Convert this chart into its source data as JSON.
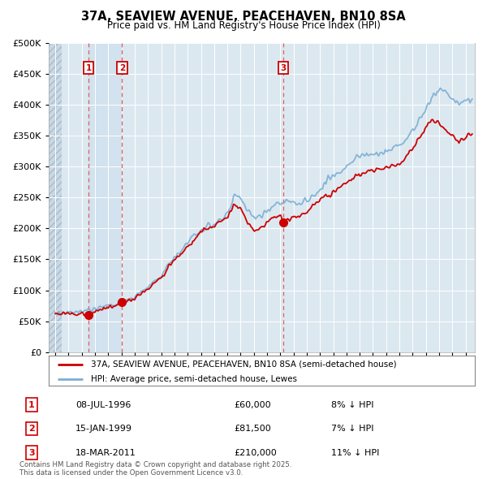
{
  "title": "37A, SEAVIEW AVENUE, PEACEHAVEN, BN10 8SA",
  "subtitle": "Price paid vs. HM Land Registry's House Price Index (HPI)",
  "legend_line1": "37A, SEAVIEW AVENUE, PEACEHAVEN, BN10 8SA (semi-detached house)",
  "legend_line2": "HPI: Average price, semi-detached house, Lewes",
  "footnote": "Contains HM Land Registry data © Crown copyright and database right 2025.\nThis data is licensed under the Open Government Licence v3.0.",
  "transactions": [
    {
      "id": 1,
      "date": "08-JUL-1996",
      "price": 60000,
      "pct": "8%",
      "x": 1996.52
    },
    {
      "id": 2,
      "date": "15-JAN-1999",
      "price": 81500,
      "pct": "7%",
      "x": 1999.04
    },
    {
      "id": 3,
      "date": "18-MAR-2011",
      "price": 210000,
      "pct": "11%",
      "x": 2011.21
    }
  ],
  "price_color": "#cc0000",
  "hpi_color": "#7bafd4",
  "dashed_color": "#e06060",
  "ylim": [
    0,
    500000
  ],
  "yticks": [
    0,
    50000,
    100000,
    150000,
    200000,
    250000,
    300000,
    350000,
    400000,
    450000,
    500000
  ],
  "xlim_start": 1993.5,
  "xlim_end": 2025.7,
  "plot_bg": "#dce8f0",
  "hatch_color": "#c8d8e4"
}
